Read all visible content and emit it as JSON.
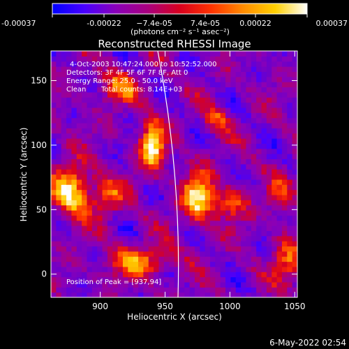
{
  "chart_data": {
    "type": "heatmap",
    "title": "Reconstructed RHESSI Image",
    "xlabel": "Heliocentric X (arcsec)",
    "ylabel": "Heliocentric Y (arcsec)",
    "xlim": [
      862,
      1052
    ],
    "ylim": [
      -18,
      173
    ],
    "x_ticks": [
      900,
      950,
      1000,
      1050
    ],
    "y_ticks": [
      0,
      50,
      100,
      150
    ],
    "colorbar": {
      "range": [
        -0.00037,
        0.00037
      ],
      "tick_values": [
        -0.00037,
        -0.00022,
        -7.4e-05,
        7.4e-05,
        0.00022,
        0.00037
      ],
      "tick_labels": [
        "-0.00037",
        "-0.00022",
        "−7.4e-05",
        "7.4e-05",
        "0.00022",
        "0.00037"
      ],
      "units": "(photons cm⁻² s⁻¹ asec⁻²)",
      "colors": [
        "#0000ff",
        "#4800ff",
        "#8a00b8",
        "#a8007e",
        "#d8001e",
        "#ff3300",
        "#ff8c00",
        "#ffd000",
        "#ffffff"
      ]
    },
    "annotations": {
      "time": "4-Oct-2003 10:47:24.000 to 10:52:52.000",
      "detectors": "Detectors: 3F 4F 5F 6F 7F 8F, Att 0",
      "energy": "Energy Range: 25.0 - 50.0 keV",
      "clean": "Clean",
      "total_counts": "Total counts: 8.14E+03",
      "peak_label": "Position of Peak = [937,94]"
    },
    "peak": [
      937,
      94
    ],
    "bright_sources": [
      {
        "x": 940,
        "y": 100,
        "intensity": 1.0,
        "sx": 9,
        "sy": 18
      },
      {
        "x": 878,
        "y": 65,
        "intensity": 0.85,
        "sx": 14,
        "sy": 20
      },
      {
        "x": 915,
        "y": 145,
        "intensity": 0.55,
        "sx": 16,
        "sy": 12
      },
      {
        "x": 975,
        "y": 60,
        "intensity": 0.8,
        "sx": 12,
        "sy": 20
      },
      {
        "x": 1000,
        "y": 55,
        "intensity": 0.55,
        "sx": 14,
        "sy": 12
      },
      {
        "x": 930,
        "y": 10,
        "intensity": 0.6,
        "sx": 25,
        "sy": 12
      },
      {
        "x": 1045,
        "y": 10,
        "intensity": 0.5,
        "sx": 12,
        "sy": 20
      },
      {
        "x": 1040,
        "y": 60,
        "intensity": 0.45,
        "sx": 10,
        "sy": 14
      },
      {
        "x": 905,
        "y": 60,
        "intensity": 0.5,
        "sx": 14,
        "sy": 14
      },
      {
        "x": 990,
        "y": 120,
        "intensity": 0.4,
        "sx": 10,
        "sy": 12
      }
    ],
    "footer_date": "6-May-2022 02:54"
  }
}
